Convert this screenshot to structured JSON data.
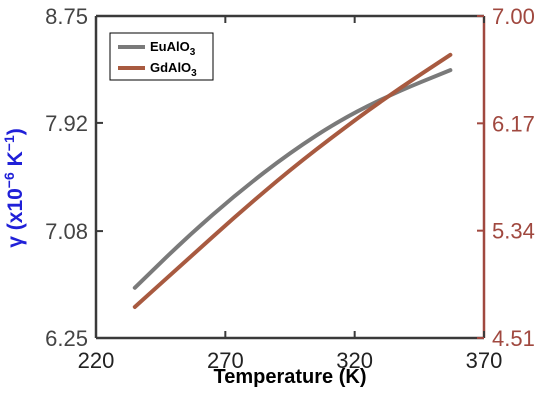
{
  "chart_data": {
    "type": "line",
    "title": "",
    "xlabel": "Temperature (K)",
    "ylabel_left": "γ (x10⁻⁶ K⁻¹)",
    "ylabel_right": "",
    "xlim": [
      220,
      370
    ],
    "ylim_left": [
      6.25,
      8.75
    ],
    "ylim_right": [
      4.51,
      7.0
    ],
    "x_ticks": [
      "220",
      "270",
      "320",
      "370"
    ],
    "y_left_ticks": [
      "6.25",
      "7.08",
      "7.92",
      "8.75"
    ],
    "y_right_ticks": [
      "4.51",
      "5.34",
      "6.17",
      "7.00"
    ],
    "legend_position": "top-left",
    "legend": [
      "EuAlO3",
      "GdAlO3"
    ],
    "colors": {
      "EuAlO3": "#7a7a7a",
      "GdAlO3": "#a85a40",
      "left_axis": "#3a3a3a",
      "right_axis": "#a0483f",
      "ylabel_left": "#2020d8"
    },
    "series": [
      {
        "name": "EuAlO3",
        "axis": "left",
        "x": [
          235,
          255,
          275,
          295,
          315,
          335,
          357
        ],
        "y": [
          6.64,
          7.03,
          7.38,
          7.69,
          7.95,
          8.15,
          8.33
        ]
      },
      {
        "name": "GdAlO3",
        "axis": "right",
        "x": [
          235,
          255,
          275,
          295,
          315,
          335,
          357
        ],
        "y": [
          4.75,
          5.11,
          5.47,
          5.81,
          6.12,
          6.41,
          6.7
        ]
      }
    ]
  }
}
